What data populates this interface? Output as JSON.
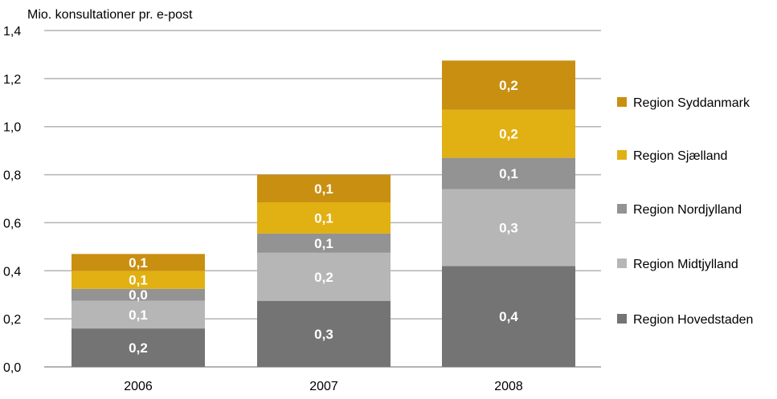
{
  "chart_data": {
    "type": "bar",
    "stacked": true,
    "title": "",
    "ylabel": "Mio. konsultationer pr. e-post",
    "xlabel": "",
    "categories": [
      "2006",
      "2007",
      "2008"
    ],
    "ylim": [
      0,
      1.4
    ],
    "yticks": [
      0,
      0.2,
      0.4,
      0.6,
      0.8,
      1.0,
      1.2,
      1.4
    ],
    "ytick_labels": [
      "0,0",
      "0,2",
      "0,4",
      "0,6",
      "0,8",
      "1,0",
      "1,2",
      "1,4"
    ],
    "grid": true,
    "legend_position": "right",
    "series": [
      {
        "name": "Region Hovedstaden",
        "color": "#747474",
        "values": [
          0.16,
          0.275,
          0.42
        ],
        "labels": [
          "0,2",
          "0,3",
          "0,4"
        ]
      },
      {
        "name": "Region Midtjylland",
        "color": "#b6b6b6",
        "values": [
          0.115,
          0.2,
          0.32
        ],
        "labels": [
          "0,1",
          "0,2",
          "0,3"
        ]
      },
      {
        "name": "Region Nordjylland",
        "color": "#939393",
        "values": [
          0.05,
          0.08,
          0.13
        ],
        "labels": [
          "0,0",
          "0,1",
          "0,1"
        ]
      },
      {
        "name": "Region Sjælland",
        "color": "#e1b012",
        "values": [
          0.075,
          0.13,
          0.2
        ],
        "labels": [
          "0,1",
          "0,1",
          "0,2"
        ]
      },
      {
        "name": "Region Syddanmark",
        "color": "#c98f10",
        "values": [
          0.07,
          0.115,
          0.205
        ],
        "labels": [
          "0,1",
          "0,1",
          "0,2"
        ]
      }
    ],
    "legend_order": [
      "Region Syddanmark",
      "Region Sjælland",
      "Region Nordjylland",
      "Region Midtjylland",
      "Region Hovedstaden"
    ]
  }
}
